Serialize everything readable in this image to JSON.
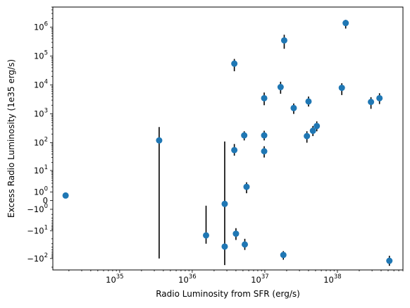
{
  "chart_data": {
    "type": "scatter",
    "title": "",
    "xlabel": "Radio Luminosity from SFR (erg/s)",
    "ylabel": "Excess Radio Luminosity (1e35 erg/s)",
    "xscale": "log",
    "yscale": "symlog",
    "xlim": [
      1.2e+34,
      8e+38
    ],
    "ylim": [
      -250,
      5000000
    ],
    "xticks": [
      {
        "value": 1e+35,
        "base": "10",
        "exp": "35"
      },
      {
        "value": 1e+36,
        "base": "10",
        "exp": "36"
      },
      {
        "value": 1e+37,
        "base": "10",
        "exp": "37"
      },
      {
        "value": 1e+38,
        "base": "10",
        "exp": "38"
      }
    ],
    "yticks": [
      {
        "value": 1000000,
        "base": "10",
        "exp": "6"
      },
      {
        "value": 100000,
        "base": "10",
        "exp": "5"
      },
      {
        "value": 10000,
        "base": "10",
        "exp": "4"
      },
      {
        "value": 1000,
        "base": "10",
        "exp": "3"
      },
      {
        "value": 100,
        "base": "10",
        "exp": "2"
      },
      {
        "value": 10,
        "base": "10",
        "exp": "1"
      },
      {
        "value": 1,
        "base": "10",
        "exp": "0"
      },
      {
        "value": 0,
        "base": "0",
        "exp": ""
      },
      {
        "value": -1,
        "base": "−10",
        "exp": "0"
      },
      {
        "value": -10,
        "base": "−10",
        "exp": "1"
      },
      {
        "value": -100,
        "base": "−10",
        "exp": "2"
      }
    ],
    "grid": false,
    "legend": "none",
    "marker_color": "#1f77b4",
    "errorbar_color": "#000000",
    "points": [
      {
        "x": 1.8e+34,
        "y": 0.5,
        "lo": 0.5,
        "hi": 0.5
      },
      {
        "x": 3.5e+35,
        "y": 120,
        "lo": -100,
        "hi": 350
      },
      {
        "x": 1.55e+36,
        "y": -15,
        "lo": -30,
        "hi": -0.5
      },
      {
        "x": 2.8e+36,
        "y": -0.3,
        "lo": -170,
        "hi": 110
      },
      {
        "x": 2.8e+36,
        "y": -38,
        "lo": -38,
        "hi": -38
      },
      {
        "x": 3.8e+36,
        "y": 55000,
        "lo": 30000,
        "hi": 80000
      },
      {
        "x": 3.8e+36,
        "y": 55,
        "lo": 35,
        "hi": 90
      },
      {
        "x": 4e+36,
        "y": -13,
        "lo": -22,
        "hi": -8
      },
      {
        "x": 5.2e+36,
        "y": 180,
        "lo": 120,
        "hi": 250
      },
      {
        "x": 5.3e+36,
        "y": -32,
        "lo": -50,
        "hi": -20
      },
      {
        "x": 5.6e+36,
        "y": 2,
        "lo": 0.8,
        "hi": 3.3
      },
      {
        "x": 9.8e+36,
        "y": 3500,
        "lo": 2000,
        "hi": 5500
      },
      {
        "x": 9.8e+36,
        "y": 180,
        "lo": 120,
        "hi": 260
      },
      {
        "x": 9.8e+36,
        "y": 50,
        "lo": 30,
        "hi": 75
      },
      {
        "x": 1.65e+37,
        "y": 8500,
        "lo": 5000,
        "hi": 13000
      },
      {
        "x": 1.85e+37,
        "y": 350000,
        "lo": 180000,
        "hi": 550000
      },
      {
        "x": 1.8e+37,
        "y": -75,
        "lo": -110,
        "hi": -55
      },
      {
        "x": 2.5e+37,
        "y": 1600,
        "lo": 1000,
        "hi": 2300
      },
      {
        "x": 3.8e+37,
        "y": 170,
        "lo": 100,
        "hi": 250
      },
      {
        "x": 4e+37,
        "y": 2700,
        "lo": 1800,
        "hi": 4000
      },
      {
        "x": 4.6e+37,
        "y": 260,
        "lo": 170,
        "hi": 380
      },
      {
        "x": 5.2e+37,
        "y": 380,
        "lo": 250,
        "hi": 550
      },
      {
        "x": 1.15e+38,
        "y": 8000,
        "lo": 4500,
        "hi": 11500
      },
      {
        "x": 1.3e+38,
        "y": 1400000,
        "lo": 900000,
        "hi": 1800000
      },
      {
        "x": 2.9e+38,
        "y": 2600,
        "lo": 1500,
        "hi": 3800
      },
      {
        "x": 3.8e+38,
        "y": 3500,
        "lo": 2200,
        "hi": 5200
      },
      {
        "x": 5.2e+38,
        "y": -120,
        "lo": -180,
        "hi": -80
      }
    ]
  }
}
